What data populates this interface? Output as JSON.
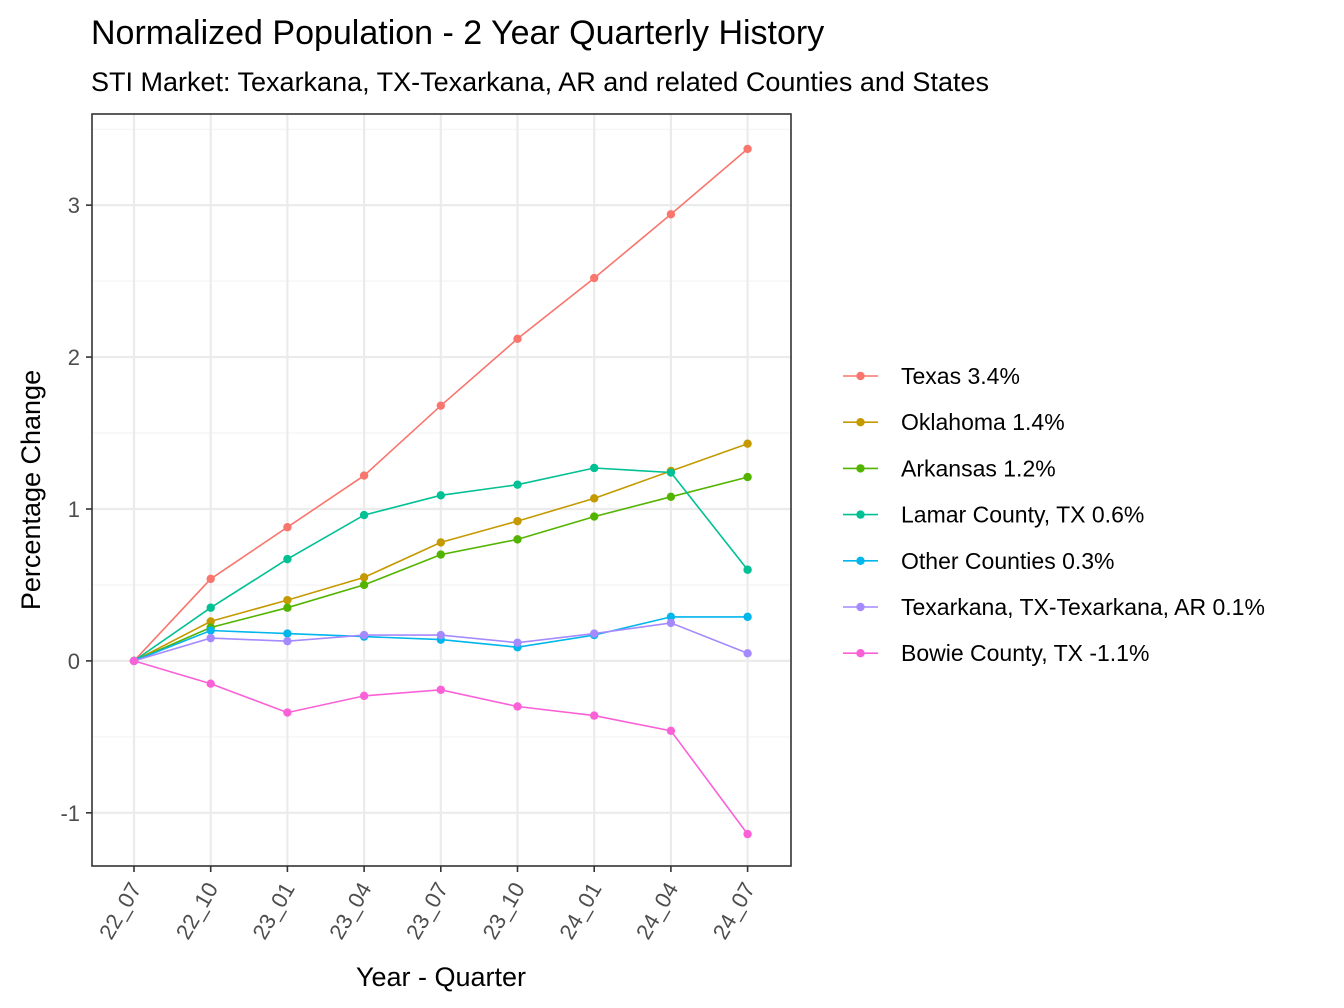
{
  "chart_data": {
    "type": "line",
    "title": "Normalized Population - 2 Year Quarterly History",
    "subtitle": "STI Market: Texarkana, TX-Texarkana, AR and related Counties and States",
    "xlabel": "Year - Quarter",
    "ylabel": "Percentage Change",
    "categories": [
      "22_07",
      "22_10",
      "23_01",
      "23_04",
      "23_07",
      "23_10",
      "24_01",
      "24_04",
      "24_07"
    ],
    "y_ticks": [
      "-1",
      "0",
      "1",
      "2",
      "3"
    ],
    "ylim": [
      -1.35,
      3.6
    ],
    "grid": true,
    "legend_position": "right",
    "series": [
      {
        "name": "Texas 3.4%",
        "color": "#F8766D",
        "values": [
          0,
          0.54,
          0.88,
          1.22,
          1.68,
          2.12,
          2.52,
          2.94,
          3.37
        ]
      },
      {
        "name": "Oklahoma 1.4%",
        "color": "#C49A00",
        "values": [
          0,
          0.26,
          0.4,
          0.55,
          0.78,
          0.92,
          1.07,
          1.25,
          1.43
        ]
      },
      {
        "name": "Arkansas 1.2%",
        "color": "#53B400",
        "values": [
          0,
          0.22,
          0.35,
          0.5,
          0.7,
          0.8,
          0.95,
          1.08,
          1.21
        ]
      },
      {
        "name": "Lamar County, TX 0.6%",
        "color": "#00C094",
        "values": [
          0,
          0.35,
          0.67,
          0.96,
          1.09,
          1.16,
          1.27,
          1.24,
          0.6
        ]
      },
      {
        "name": "Other Counties 0.3%",
        "color": "#00B6EB",
        "values": [
          0,
          0.2,
          0.18,
          0.16,
          0.14,
          0.09,
          0.17,
          0.29,
          0.29
        ]
      },
      {
        "name": "Texarkana, TX-Texarkana, AR 0.1%",
        "color": "#A58AFF",
        "values": [
          0,
          0.15,
          0.13,
          0.17,
          0.17,
          0.12,
          0.18,
          0.25,
          0.05
        ]
      },
      {
        "name": "Bowie County, TX -1.1%",
        "color": "#FB61D7",
        "values": [
          0,
          -0.15,
          -0.34,
          -0.23,
          -0.19,
          -0.3,
          -0.36,
          -0.46,
          -1.14
        ]
      }
    ]
  }
}
